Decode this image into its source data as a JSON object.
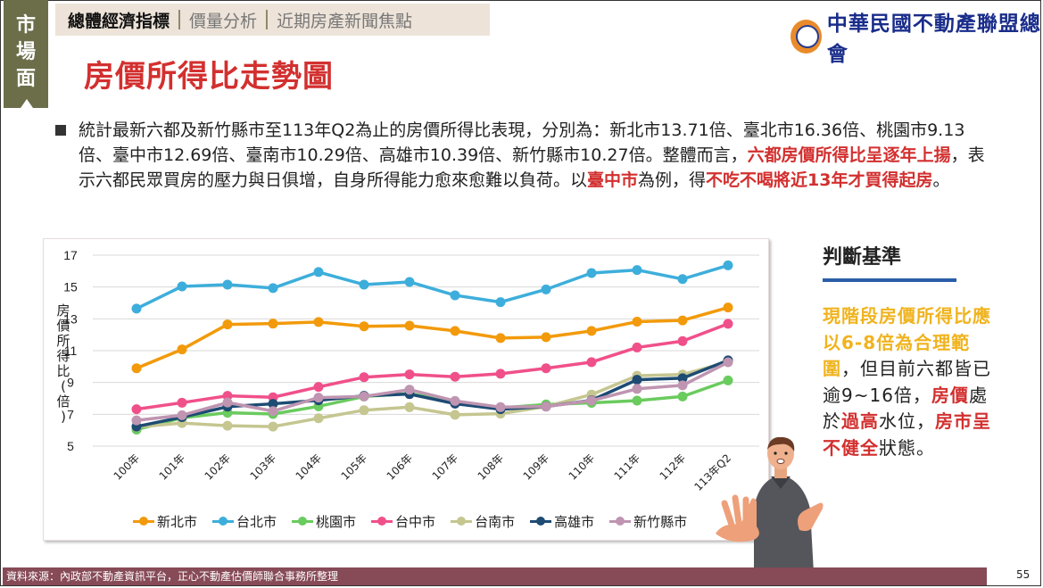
{
  "sidebar": {
    "label": "市場面",
    "chars": [
      "市",
      "場",
      "面"
    ]
  },
  "topnav": {
    "items": [
      {
        "label": "總體經濟指標",
        "active": true
      },
      {
        "label": "價量分析",
        "active": false
      },
      {
        "label": "近期房產新聞焦點",
        "active": false
      }
    ]
  },
  "logo": {
    "name": "中華民國不動產聯盟總會"
  },
  "page_title": "房價所得比走勢圖",
  "intro": {
    "segments": [
      {
        "text": "統計最新六都及新竹縣市至113年Q2為止的房價所得比表現，分別為：新北市13.71倍、臺北市16.36倍、桃園市9.13倍、臺中市12.69倍、臺南市10.29倍、高雄市10.39倍、新竹縣市10.27倍。整體而言，",
        "emphasis": false
      },
      {
        "text": "六都房價所得比呈逐年上揚",
        "emphasis": true
      },
      {
        "text": "，表示六都民眾買房的壓力與日俱增，自身所得能力愈來愈難以負荷。以",
        "emphasis": false
      },
      {
        "text": "臺中市",
        "emphasis": true
      },
      {
        "text": "為例，得",
        "emphasis": false
      },
      {
        "text": "不吃不喝將近13年才買得起房",
        "emphasis": true
      },
      {
        "text": "。",
        "emphasis": false
      }
    ]
  },
  "chart_data": {
    "type": "line",
    "title": "",
    "xlabel": "",
    "ylabel": "房價所得比(倍)",
    "ylim": [
      5,
      17
    ],
    "yticks": [
      5,
      7,
      9,
      11,
      13,
      15,
      17
    ],
    "grid": true,
    "legend_position": "bottom",
    "categories": [
      "100年",
      "101年",
      "102年",
      "103年",
      "104年",
      "105年",
      "106年",
      "107年",
      "108年",
      "109年",
      "110年",
      "111年",
      "112年",
      "113年Q2"
    ],
    "series": [
      {
        "name": "新北市",
        "color": "#f29a0b",
        "values": [
          9.89,
          11.08,
          12.65,
          12.7,
          12.8,
          12.53,
          12.57,
          12.24,
          11.79,
          11.85,
          12.24,
          12.82,
          12.9,
          13.71
        ]
      },
      {
        "name": "台北市",
        "color": "#3daedb",
        "values": [
          13.64,
          15.04,
          15.15,
          14.93,
          15.94,
          15.15,
          15.32,
          14.48,
          14.05,
          14.85,
          15.88,
          16.07,
          15.5,
          16.36
        ]
      },
      {
        "name": "桃園市",
        "color": "#6acb5e",
        "values": [
          6.04,
          6.78,
          7.1,
          7.02,
          7.5,
          8.12,
          8.3,
          7.8,
          7.4,
          7.62,
          7.72,
          7.86,
          8.12,
          9.13
        ]
      },
      {
        "name": "台中市",
        "color": "#f0508a",
        "values": [
          7.32,
          7.73,
          8.16,
          8.07,
          8.72,
          9.33,
          9.51,
          9.36,
          9.55,
          9.89,
          10.28,
          11.2,
          11.6,
          12.69
        ]
      },
      {
        "name": "台南市",
        "color": "#c5c690",
        "values": [
          6.2,
          6.45,
          6.28,
          6.23,
          6.75,
          7.26,
          7.45,
          6.97,
          7.04,
          7.49,
          8.24,
          9.42,
          9.5,
          10.29
        ]
      },
      {
        "name": "高雄市",
        "color": "#1d4b73",
        "values": [
          6.23,
          6.82,
          7.48,
          7.66,
          7.88,
          8.16,
          8.27,
          7.67,
          7.32,
          7.49,
          7.88,
          9.17,
          9.27,
          10.39
        ]
      },
      {
        "name": "新竹縣市",
        "color": "#bf95b1",
        "values": [
          6.62,
          6.94,
          7.74,
          7.2,
          8.05,
          8.12,
          8.55,
          7.84,
          7.45,
          7.49,
          7.86,
          8.6,
          8.82,
          10.27
        ]
      }
    ]
  },
  "side_panel": {
    "heading": "判斷基準",
    "segments": [
      {
        "text": "現階段房價所得比應以6-8倍為合理範圍",
        "style": "yellow"
      },
      {
        "text": "，但目前六都皆已逾9~16倍，",
        "style": "normal"
      },
      {
        "text": "房價",
        "style": "red"
      },
      {
        "text": "處於",
        "style": "normal"
      },
      {
        "text": "過高",
        "style": "red"
      },
      {
        "text": "水位，",
        "style": "normal"
      },
      {
        "text": "房市呈不健全",
        "style": "red"
      },
      {
        "text": "狀態。",
        "style": "normal"
      }
    ]
  },
  "illustration": {
    "icon": "presenter-stop-gesture-icon"
  },
  "footer": {
    "source": "資料來源：內政部不動產資訊平台，正心不動產估價師聯合事務所整理"
  },
  "page_number": "55"
}
